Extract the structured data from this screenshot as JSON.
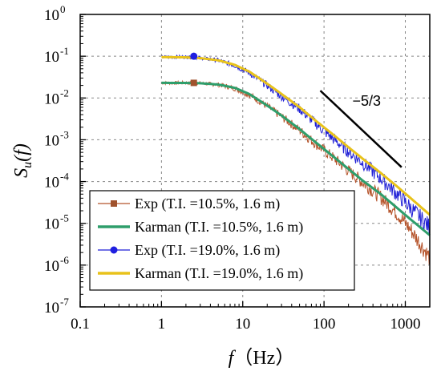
{
  "chart_data": {
    "type": "line",
    "xscale": "log",
    "yscale": "log",
    "xlim": [
      0.1,
      2000
    ],
    "ylim": [
      1e-07,
      1
    ],
    "xticks": [
      {
        "value": 0.1,
        "label": "0.1"
      },
      {
        "value": 1,
        "label": "1"
      },
      {
        "value": 10,
        "label": "10"
      },
      {
        "value": 100,
        "label": "100"
      },
      {
        "value": 1000,
        "label": "1000"
      }
    ],
    "yticks": [
      {
        "value": 1,
        "base": "10",
        "exp": "0"
      },
      {
        "value": 0.1,
        "base": "10",
        "exp": "-1"
      },
      {
        "value": 0.01,
        "base": "10",
        "exp": "-2"
      },
      {
        "value": 0.001,
        "base": "10",
        "exp": "-3"
      },
      {
        "value": 0.0001,
        "base": "10",
        "exp": "-4"
      },
      {
        "value": 1e-05,
        "base": "10",
        "exp": "-5"
      },
      {
        "value": 1e-06,
        "base": "10",
        "exp": "-6"
      },
      {
        "value": 1e-07,
        "base": "10",
        "exp": "-7"
      }
    ],
    "xlabel": {
      "var": "f",
      "unit": "（Hz）"
    },
    "ylabel": {
      "S": "S",
      "sub": "u",
      "arg": "(f)"
    },
    "grid": true,
    "legend_position": "bottom-left",
    "annotation": {
      "text": "−5/3",
      "line": {
        "x": [
          90,
          900
        ],
        "y": [
          0.015,
          0.00022
        ]
      }
    },
    "series": [
      {
        "name": "Exp (T.I. =10.5%, 1.6 m)",
        "style": "measured",
        "marker": "square",
        "color": "#b5532a",
        "marker_color": "#a0522d",
        "marker_at": [
          2.5,
          0.023
        ],
        "x": [
          1,
          2,
          3,
          5,
          8,
          12,
          20,
          30,
          50,
          80,
          120,
          200,
          300,
          500,
          800,
          1200,
          2000
        ],
        "y": [
          0.023,
          0.023,
          0.0225,
          0.021,
          0.017,
          0.012,
          0.0063,
          0.0036,
          0.0017,
          0.00078,
          0.00042,
          0.00018,
          9.5e-05,
          4.2e-05,
          1.7e-05,
          6.5e-06,
          1.5e-06
        ]
      },
      {
        "name": "Karman (T.I. =10.5%, 1.6 m)",
        "style": "model",
        "color": "#2e9e6b",
        "x": [
          1,
          2,
          3,
          5,
          8,
          12,
          20,
          30,
          50,
          80,
          120,
          200,
          300,
          500,
          800,
          1200,
          2000
        ],
        "y": [
          0.023,
          0.0229,
          0.0225,
          0.021,
          0.0175,
          0.0125,
          0.0066,
          0.0038,
          0.0018,
          0.00085,
          0.00045,
          0.0002,
          0.000105,
          5e-05,
          2.3e-05,
          1.18e-05,
          5.2e-06
        ]
      },
      {
        "name": "Exp (T.I. =19.0%, 1.6 m)",
        "style": "measured",
        "marker": "circle",
        "color": "#1f1fd6",
        "marker_color": "#1f1fe0",
        "marker_at": [
          2.5,
          0.1
        ],
        "x": [
          1,
          2,
          3,
          5,
          8,
          12,
          20,
          30,
          50,
          80,
          120,
          200,
          300,
          500,
          800,
          1200,
          2000
        ],
        "y": [
          0.095,
          0.096,
          0.09,
          0.08,
          0.06,
          0.04,
          0.02,
          0.011,
          0.0055,
          0.0024,
          0.0012,
          0.00052,
          0.00028,
          0.00012,
          5e-05,
          2.2e-05,
          8e-06
        ]
      },
      {
        "name": "Karman (T.I. =19.0%, 1.6 m)",
        "style": "model",
        "color": "#e8c21a",
        "x": [
          1,
          2,
          3,
          5,
          8,
          12,
          20,
          30,
          50,
          80,
          120,
          200,
          300,
          500,
          800,
          1200,
          2000
        ],
        "y": [
          0.095,
          0.094,
          0.09,
          0.08,
          0.062,
          0.043,
          0.022,
          0.0125,
          0.006,
          0.0028,
          0.0015,
          0.00066,
          0.00035,
          0.00016,
          7.5e-05,
          3.8e-05,
          1.6e-05
        ]
      }
    ]
  }
}
